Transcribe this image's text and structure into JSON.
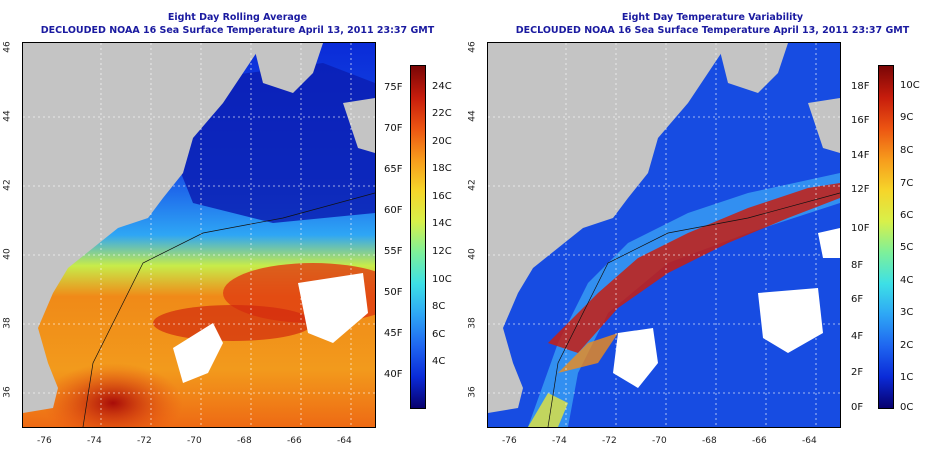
{
  "panels": [
    {
      "title_line1": "Eight Day Rolling Average",
      "title_line2": "DECLOUDED NOAA 16 Sea Surface Temperature April 13, 2011 23:37 GMT",
      "colorbar": {
        "fahrenheit_labels": [
          "75F",
          "70F",
          "65F",
          "60F",
          "55F",
          "50F",
          "45F",
          "40F"
        ],
        "celsius_labels": [
          "24C",
          "22C",
          "20C",
          "18C",
          "16C",
          "14C",
          "12C",
          "10C",
          "8C",
          "6C",
          "4C"
        ]
      }
    },
    {
      "title_line1": "Eight Day Temperature Variability",
      "title_line2": "DECLOUDED NOAA 16 Sea Surface Temperature April 13, 2011 23:37 GMT",
      "colorbar": {
        "fahrenheit_labels": [
          "18F",
          "16F",
          "14F",
          "12F",
          "10F",
          "8F",
          "6F",
          "4F",
          "2F",
          "0F"
        ],
        "celsius_labels": [
          "10C",
          "9C",
          "8C",
          "7C",
          "6C",
          "5C",
          "4C",
          "3C",
          "2C",
          "1C",
          "0C"
        ]
      }
    }
  ],
  "axes": {
    "longitude_ticks": [
      "-76",
      "-74",
      "-72",
      "-70",
      "-68",
      "-66",
      "-64"
    ],
    "latitude_ticks": [
      "46",
      "44",
      "42",
      "40",
      "38",
      "36"
    ]
  },
  "colors": {
    "title": "#1a1aa0",
    "land": "#c4c4c4",
    "colormap": [
      "#08006e",
      "#0a2bd8",
      "#1f66f0",
      "#2ea6f5",
      "#3de0e6",
      "#7df09a",
      "#d8f04a",
      "#f6d52a",
      "#f79b1c",
      "#ec5412",
      "#c61c0c",
      "#7a0606"
    ]
  }
}
